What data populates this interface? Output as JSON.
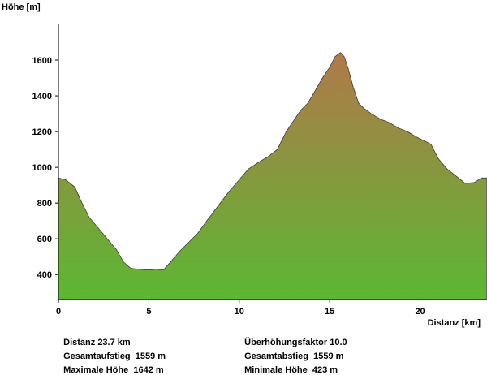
{
  "chart_data": {
    "type": "area",
    "ylabel": "Höhe [m]",
    "xlabel": "Distanz [km]",
    "xlim": [
      0,
      23.7
    ],
    "ylim": [
      260,
      1800
    ],
    "xticks": [
      0,
      5,
      10,
      15,
      20
    ],
    "yticks": [
      400,
      600,
      800,
      1000,
      1200,
      1400,
      1600
    ],
    "grid": false,
    "colors": {
      "top": "#b0794a",
      "bottom": "#5bb832"
    },
    "x": [
      0,
      0.4,
      0.9,
      1.3,
      1.7,
      2.2,
      2.7,
      3.2,
      3.6,
      4.0,
      4.4,
      5.0,
      5.4,
      5.8,
      6.2,
      6.7,
      7.2,
      7.7,
      8.2,
      8.8,
      9.4,
      10.0,
      10.5,
      11.1,
      11.6,
      12.1,
      12.6,
      13.0,
      13.4,
      13.8,
      14.2,
      14.6,
      15.0,
      15.3,
      15.6,
      15.8,
      16.0,
      16.3,
      16.6,
      16.9,
      17.3,
      17.8,
      18.3,
      18.8,
      19.3,
      19.8,
      20.2,
      20.6,
      21.0,
      21.5,
      22.0,
      22.5,
      23.0,
      23.4,
      23.7
    ],
    "y": [
      940,
      930,
      890,
      800,
      720,
      660,
      600,
      540,
      470,
      435,
      430,
      425,
      430,
      425,
      470,
      530,
      580,
      630,
      700,
      780,
      860,
      930,
      990,
      1030,
      1060,
      1100,
      1200,
      1260,
      1320,
      1360,
      1430,
      1500,
      1560,
      1620,
      1642,
      1620,
      1560,
      1450,
      1360,
      1330,
      1300,
      1270,
      1250,
      1220,
      1200,
      1170,
      1150,
      1130,
      1050,
      990,
      950,
      910,
      915,
      940,
      940
    ]
  },
  "stats": [
    {
      "label": "Distanz",
      "value": "23.7 km"
    },
    {
      "label": "Überhöhungsfaktor",
      "value": "10.0"
    },
    {
      "label": "Gesamtaufstieg",
      "value": "1559 m"
    },
    {
      "label": "Gesamtabstieg",
      "value": "1559 m"
    },
    {
      "label": "Maximale Höhe",
      "value": "1642 m"
    },
    {
      "label": "Minimale Höhe",
      "value": "423 m"
    }
  ]
}
